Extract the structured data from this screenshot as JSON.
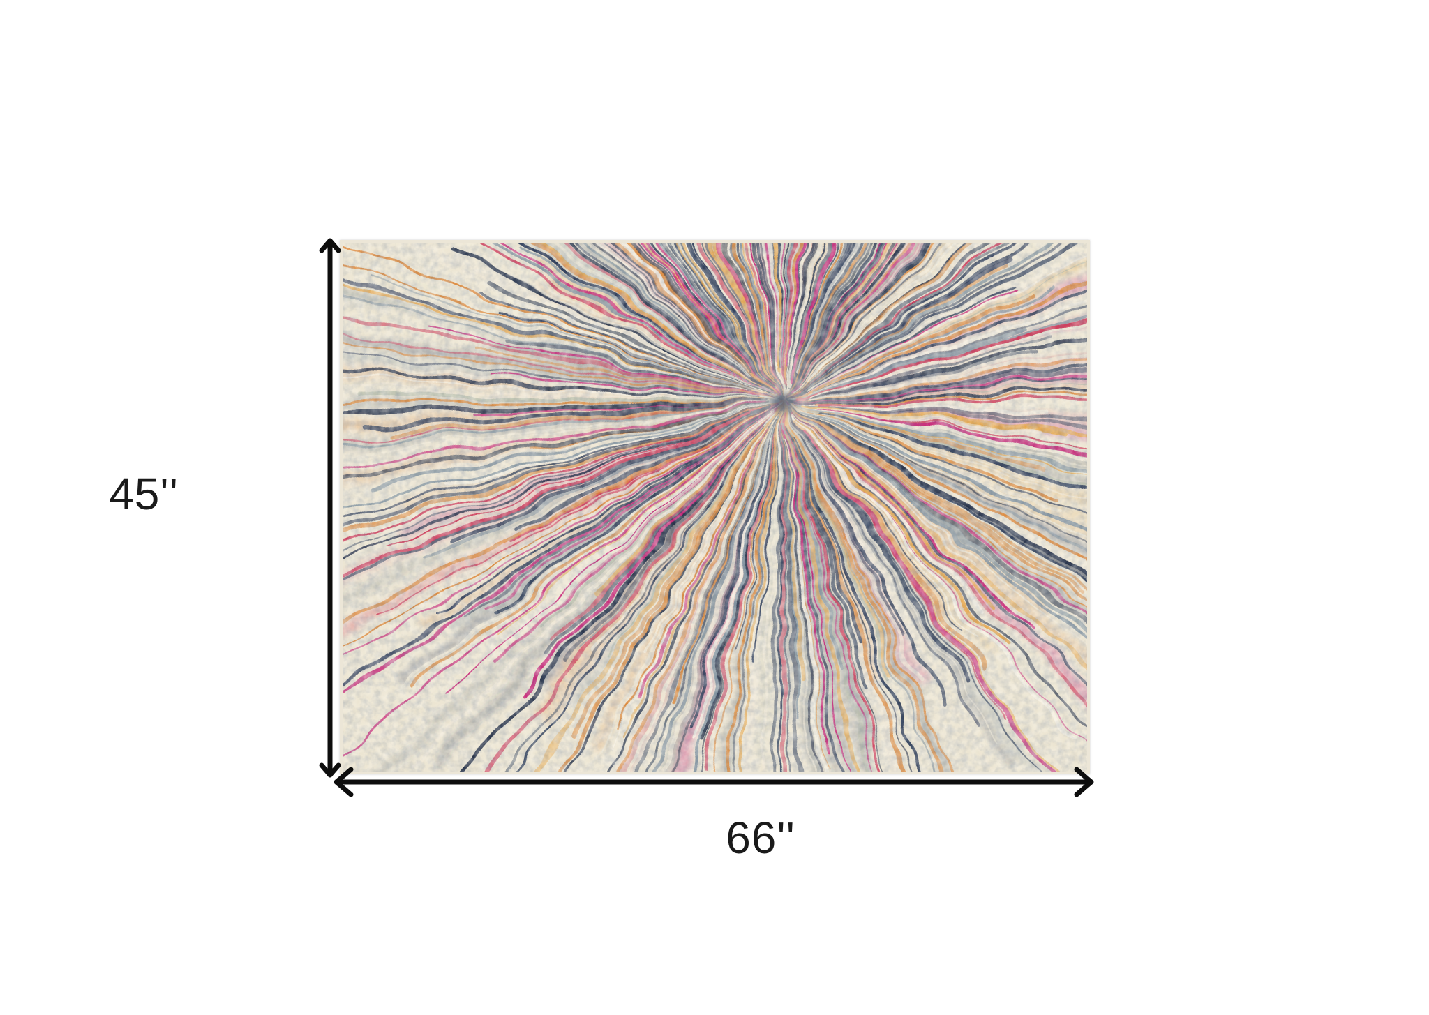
{
  "diagram": {
    "height_label": "45''",
    "width_label": "66''",
    "arrow_color": "#0d0d0d",
    "label_color": "#1a1a1a"
  },
  "rug": {
    "image_name": "multicolor-abstract-burst-area-rug",
    "base_color": "#ece5d2",
    "edge_color": "#ece6d7",
    "palette": {
      "navy": "#32405b",
      "ink": "#27334a",
      "slate": "#8495a1",
      "sage": "#b7bdab",
      "cream": "#efe8d6",
      "ivory": "#f7f2e5",
      "orange": "#dd893c",
      "amber": "#e7a84e",
      "magenta": "#c72277",
      "crimson": "#cf3f5d"
    }
  }
}
